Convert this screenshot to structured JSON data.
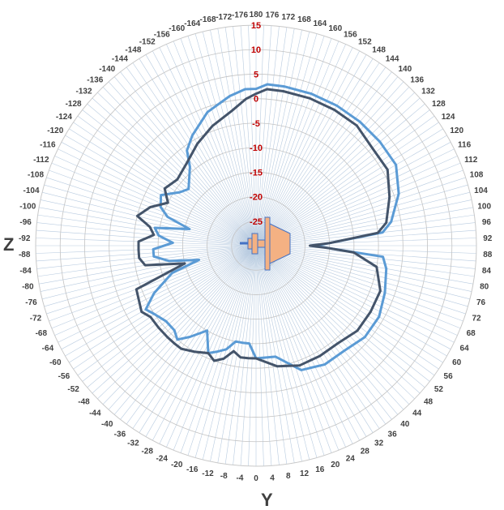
{
  "chart_data": {
    "type": "polar-line",
    "title": "",
    "axis_left_label": "Z",
    "axis_bottom_label": "Y",
    "radial_axis": {
      "min": -30,
      "max": 15,
      "tick_labels": [
        "-25",
        "-20",
        "-15",
        "-10",
        "-5",
        "0",
        "5",
        "10",
        "15"
      ]
    },
    "angle_tick_labels": [
      "0",
      "4",
      "8",
      "12",
      "16",
      "20",
      "24",
      "28",
      "32",
      "36",
      "40",
      "44",
      "48",
      "52",
      "56",
      "60",
      "64",
      "68",
      "72",
      "76",
      "80",
      "84",
      "88",
      "92",
      "96",
      "100",
      "104",
      "108",
      "112",
      "116",
      "120",
      "124",
      "128",
      "132",
      "136",
      "140",
      "144",
      "148",
      "152",
      "156",
      "160",
      "164",
      "168",
      "172",
      "176",
      "180",
      "-176",
      "-172",
      "-168",
      "-164",
      "-160",
      "-156",
      "-152",
      "-148",
      "-144",
      "-140",
      "-136",
      "-132",
      "-128",
      "-124",
      "-120",
      "-116",
      "-112",
      "-108",
      "-104",
      "-100",
      "-96",
      "-92",
      "-88",
      "-84",
      "-80",
      "-76",
      "-72",
      "-68",
      "-64",
      "-60",
      "-56",
      "-52",
      "-48",
      "-44",
      "-40",
      "-36",
      "-32",
      "-28",
      "-24",
      "-20",
      "-16",
      "-12",
      "-8",
      "-4"
    ],
    "series": [
      {
        "color": "#5b9bd5",
        "points": [
          [
            0,
            -7
          ],
          [
            10,
            -7
          ],
          [
            20,
            -3
          ],
          [
            30,
            -2
          ],
          [
            40,
            -2
          ],
          [
            50,
            -1
          ],
          [
            60,
            -1
          ],
          [
            70,
            -2
          ],
          [
            80,
            -3
          ],
          [
            85,
            -4
          ],
          [
            88,
            -15
          ],
          [
            90,
            -18
          ],
          [
            92,
            -15
          ],
          [
            96,
            -4
          ],
          [
            100,
            -2
          ],
          [
            110,
            1
          ],
          [
            120,
            3
          ],
          [
            130,
            3
          ],
          [
            140,
            3
          ],
          [
            150,
            3
          ],
          [
            160,
            3
          ],
          [
            170,
            3
          ],
          [
            176,
            3
          ],
          [
            180,
            2
          ],
          [
            -176,
            2
          ],
          [
            -170,
            1
          ],
          [
            -160,
            -1
          ],
          [
            -150,
            -4
          ],
          [
            -144,
            -6
          ],
          [
            -140,
            -9
          ],
          [
            -130,
            -12
          ],
          [
            -125,
            -11
          ],
          [
            -118,
            -8
          ],
          [
            -112,
            -9
          ],
          [
            -108,
            -11
          ],
          [
            -104,
            -16
          ],
          [
            -100,
            -9
          ],
          [
            -96,
            -10
          ],
          [
            -92,
            -13
          ],
          [
            -88,
            -9
          ],
          [
            -84,
            -9
          ],
          [
            -80,
            -12
          ],
          [
            -76,
            -18
          ],
          [
            -72,
            -12
          ],
          [
            -65,
            -7
          ],
          [
            -60,
            -4
          ],
          [
            -56,
            -5
          ],
          [
            -50,
            -6
          ],
          [
            -44,
            -6
          ],
          [
            -40,
            -5
          ],
          [
            -36,
            -7
          ],
          [
            -30,
            -10
          ],
          [
            -24,
            -6
          ],
          [
            -20,
            -7
          ],
          [
            -16,
            -8
          ],
          [
            -12,
            -10
          ],
          [
            -8,
            -10
          ],
          [
            -4,
            -10
          ]
        ]
      },
      {
        "color": "#44546a",
        "points": [
          [
            0,
            -7
          ],
          [
            10,
            -5
          ],
          [
            20,
            -4
          ],
          [
            30,
            -4
          ],
          [
            40,
            -4
          ],
          [
            50,
            -3
          ],
          [
            60,
            -3
          ],
          [
            70,
            -3
          ],
          [
            80,
            -5
          ],
          [
            86,
            -10
          ],
          [
            88,
            -15
          ],
          [
            90,
            -19
          ],
          [
            92,
            -15
          ],
          [
            96,
            -5
          ],
          [
            100,
            -3
          ],
          [
            110,
            -1
          ],
          [
            120,
            1
          ],
          [
            130,
            1
          ],
          [
            140,
            2
          ],
          [
            150,
            2
          ],
          [
            160,
            2
          ],
          [
            170,
            2
          ],
          [
            176,
            2
          ],
          [
            180,
            1
          ],
          [
            -176,
            0
          ],
          [
            -170,
            -2
          ],
          [
            -160,
            -4
          ],
          [
            -150,
            -6
          ],
          [
            -140,
            -8
          ],
          [
            -130,
            -9
          ],
          [
            -122,
            -8
          ],
          [
            -116,
            -10
          ],
          [
            -110,
            -7
          ],
          [
            -104,
            -5
          ],
          [
            -100,
            -8
          ],
          [
            -96,
            -9
          ],
          [
            -92,
            -6
          ],
          [
            -88,
            -6
          ],
          [
            -84,
            -6
          ],
          [
            -80,
            -7
          ],
          [
            -76,
            -15
          ],
          [
            -70,
            -4
          ],
          [
            -60,
            -3
          ],
          [
            -56,
            -4
          ],
          [
            -50,
            -4
          ],
          [
            -44,
            -4
          ],
          [
            -40,
            -4
          ],
          [
            -36,
            -4
          ],
          [
            -30,
            -5
          ],
          [
            -24,
            -6
          ],
          [
            -20,
            -5
          ],
          [
            -16,
            -6
          ],
          [
            -12,
            -8
          ],
          [
            -8,
            -7
          ],
          [
            -4,
            -7
          ]
        ]
      }
    ]
  }
}
